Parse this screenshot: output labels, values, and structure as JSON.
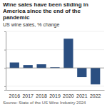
{
  "chart_data": {
    "type": "bar",
    "title": "Wine sales have been sliding in America since the end of the pandemic",
    "subtitle": "US wine sales, % change",
    "source": "Source: State of the US Wine Industry 2024",
    "categories": [
      "2016",
      "2017",
      "2018",
      "2019",
      "2020",
      "2021",
      "2022"
    ],
    "values": [
      1.5,
      0.8,
      1.0,
      0.2,
      8.0,
      -2.5,
      -4.5
    ],
    "color": "#2b4f81",
    "ylim": [
      -6,
      10
    ],
    "yticks": [
      -5,
      0,
      5,
      10
    ],
    "grid": true,
    "tick_labels": "x"
  }
}
